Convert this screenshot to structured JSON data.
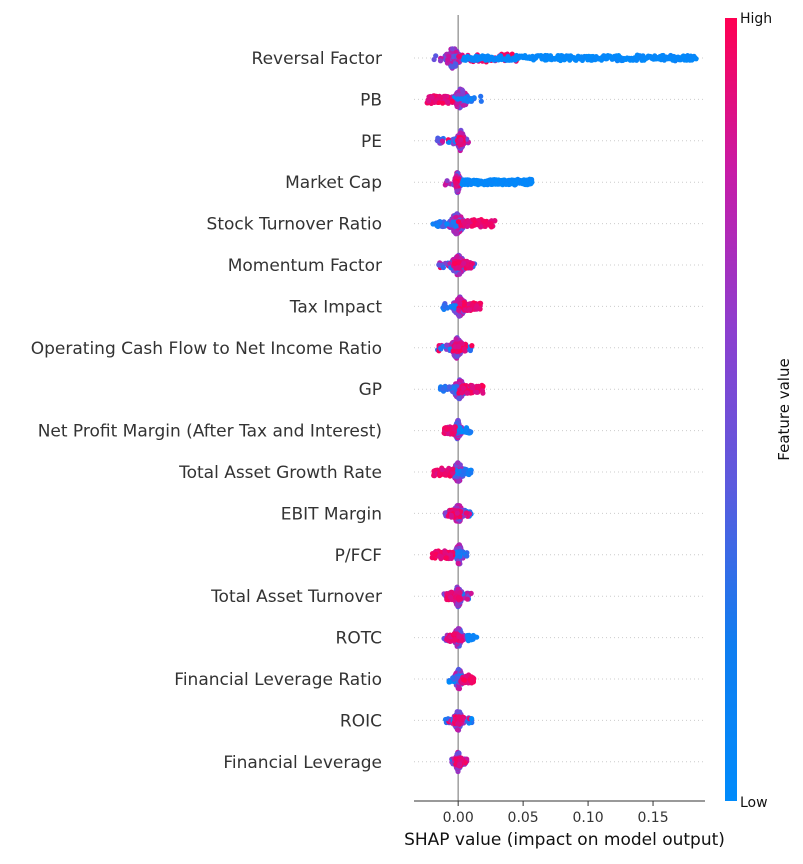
{
  "chart_data": {
    "type": "scatter",
    "subtype": "beeswarm",
    "xlabel": "SHAP value (impact on model output)",
    "xlim": [
      -0.034,
      0.19
    ],
    "xticks": [
      0.0,
      0.05,
      0.1,
      0.15
    ],
    "xtick_labels": [
      "0.00",
      "0.05",
      "0.10",
      "0.15"
    ],
    "grid": false,
    "colorbar": {
      "title": "Feature value",
      "high_label": "High",
      "low_label": "Low",
      "low_color": "#008bfb",
      "high_color": "#ff0052"
    },
    "features": [
      {
        "name": "Reversal Factor",
        "min": -0.02,
        "max": 0.184,
        "core": [
          -0.012,
          0.004
        ],
        "red_tail": [
          0.0,
          0.045
        ],
        "note_tail": "blue"
      },
      {
        "name": "PB",
        "min": -0.024,
        "max": 0.018,
        "core": [
          -0.006,
          0.01
        ],
        "red_tail": [
          -0.024,
          -0.004
        ],
        "note_tail": "red-left"
      },
      {
        "name": "PE",
        "min": -0.016,
        "max": 0.008,
        "core": [
          -0.002,
          0.006
        ],
        "red_tail": [
          0.0,
          0.004
        ],
        "note_tail": "mixed"
      },
      {
        "name": "Market Cap",
        "min": -0.011,
        "max": 0.057,
        "core": [
          -0.004,
          0.003
        ],
        "red_tail": [
          -0.002,
          0.001
        ],
        "note_tail": "blue"
      },
      {
        "name": "Stock Turnover Ratio",
        "min": -0.02,
        "max": 0.029,
        "core": [
          -0.01,
          0.008
        ],
        "red_tail": [
          0.0,
          0.029
        ],
        "note_tail": "red-right"
      },
      {
        "name": "Momentum Factor",
        "min": -0.015,
        "max": 0.013,
        "core": [
          -0.008,
          0.008
        ],
        "red_tail": [
          -0.004,
          0.01
        ],
        "note_tail": "mixed"
      },
      {
        "name": "Tax Impact",
        "min": -0.012,
        "max": 0.018,
        "core": [
          -0.006,
          0.008
        ],
        "red_tail": [
          0.0,
          0.018
        ],
        "note_tail": "red-right"
      },
      {
        "name": "Operating Cash Flow to Net Income Ratio",
        "min": -0.016,
        "max": 0.011,
        "core": [
          -0.008,
          0.006
        ],
        "red_tail": [
          -0.004,
          0.006
        ],
        "note_tail": "mixed"
      },
      {
        "name": "GP",
        "min": -0.014,
        "max": 0.02,
        "core": [
          -0.006,
          0.008
        ],
        "red_tail": [
          0.0,
          0.02
        ],
        "note_tail": "red-right"
      },
      {
        "name": "Net Profit Margin (After Tax and Interest)",
        "min": -0.011,
        "max": 0.01,
        "core": [
          -0.004,
          0.004
        ],
        "red_tail": [
          -0.011,
          -0.002
        ],
        "note_tail": "red-left"
      },
      {
        "name": "Total Asset Growth Rate",
        "min": -0.019,
        "max": 0.011,
        "core": [
          -0.006,
          0.006
        ],
        "red_tail": [
          -0.019,
          -0.004
        ],
        "note_tail": "red-left"
      },
      {
        "name": "EBIT Margin",
        "min": -0.01,
        "max": 0.01,
        "core": [
          -0.005,
          0.005
        ],
        "red_tail": [
          -0.008,
          0.002
        ],
        "note_tail": "mixed"
      },
      {
        "name": "P/FCF",
        "min": -0.02,
        "max": 0.007,
        "core": [
          -0.004,
          0.005
        ],
        "red_tail": [
          -0.02,
          -0.004
        ],
        "note_tail": "red-left"
      },
      {
        "name": "Total Asset Turnover",
        "min": -0.011,
        "max": 0.011,
        "core": [
          -0.005,
          0.005
        ],
        "red_tail": [
          -0.009,
          0.002
        ],
        "note_tail": "mixed"
      },
      {
        "name": "ROTC",
        "min": -0.011,
        "max": 0.016,
        "core": [
          -0.005,
          0.005
        ],
        "red_tail": [
          -0.009,
          0.003
        ],
        "note_tail": "blue-right"
      },
      {
        "name": "Financial Leverage Ratio",
        "min": -0.007,
        "max": 0.013,
        "core": [
          -0.004,
          0.005
        ],
        "red_tail": [
          0.002,
          0.012
        ],
        "note_tail": "red-right"
      },
      {
        "name": "ROIC",
        "min": -0.01,
        "max": 0.011,
        "core": [
          -0.005,
          0.005
        ],
        "red_tail": [
          -0.003,
          0.004
        ],
        "note_tail": "mixed"
      },
      {
        "name": "Financial Leverage",
        "min": -0.005,
        "max": 0.007,
        "core": [
          -0.003,
          0.003
        ],
        "red_tail": [
          -0.002,
          0.003
        ],
        "note_tail": "mixed"
      }
    ]
  }
}
